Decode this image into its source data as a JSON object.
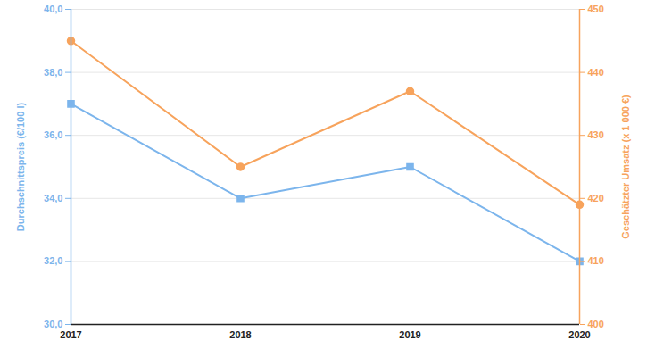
{
  "chart_data": {
    "type": "line",
    "categories": [
      "2017",
      "2018",
      "2019",
      "2020"
    ],
    "ylabel": "Durchschnittspreis (€/100 l)",
    "y2label": "Geschätzter Umsatz (x 1 000 €)",
    "ylim": [
      30,
      40
    ],
    "yticks": [
      {
        "value": 30,
        "label": "30,0"
      },
      {
        "value": 32,
        "label": "32,0"
      },
      {
        "value": 34,
        "label": "34,0"
      },
      {
        "value": 36,
        "label": "36,0"
      },
      {
        "value": 38,
        "label": "38,0"
      },
      {
        "value": 40,
        "label": "40,0"
      }
    ],
    "y2lim": [
      400,
      450
    ],
    "y2ticks": [
      400,
      410,
      420,
      430,
      440,
      450
    ],
    "grid": true,
    "series": [
      {
        "color": "#7cb5ec",
        "marker": "square",
        "values": [
          37,
          34,
          35,
          32
        ]
      },
      {
        "color": "#f7a35c",
        "marker": "circle",
        "axis": "y2",
        "values": [
          445,
          425,
          437,
          419
        ]
      }
    ]
  }
}
